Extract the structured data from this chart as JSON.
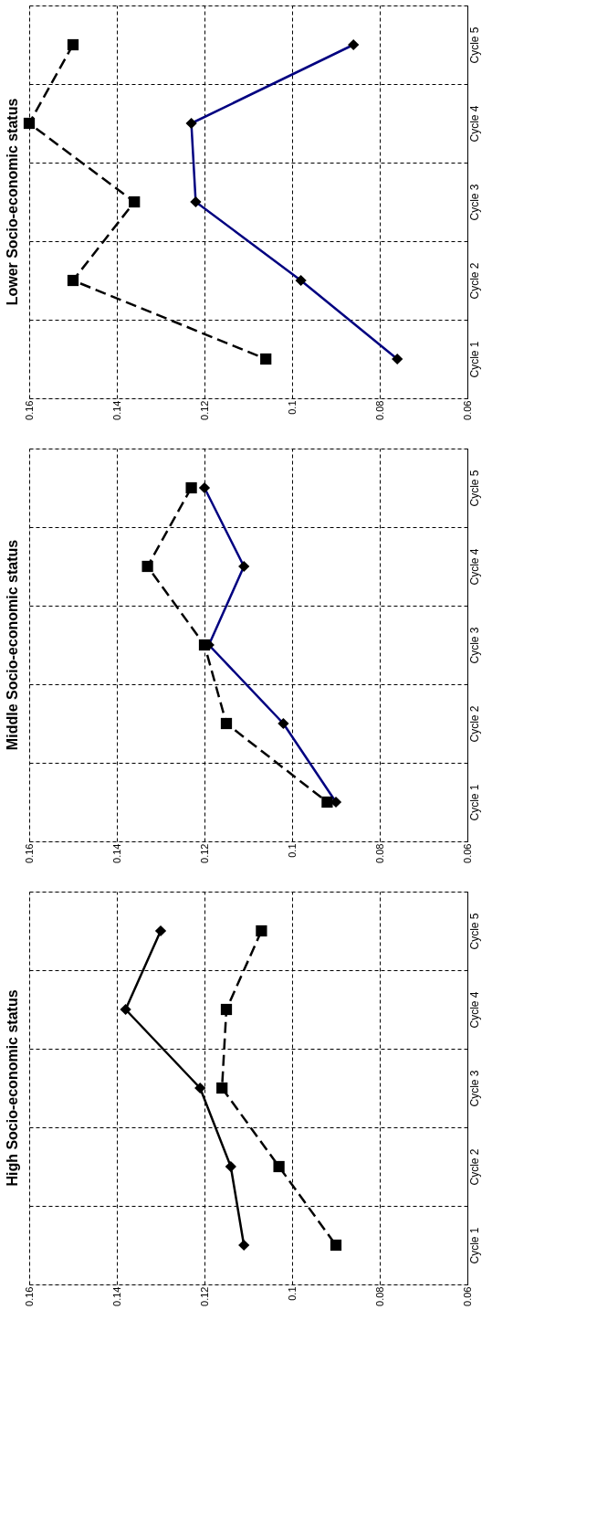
{
  "chart_data": [
    {
      "type": "line",
      "title": "Lower Socio-economic status",
      "orientation": "horizontal",
      "categories": [
        "Cycle 5",
        "Cycle 4",
        "Cycle 3",
        "Cycle 2",
        "Cycle 1"
      ],
      "xlim": [
        0.16,
        0.06
      ],
      "xticks": [
        0.16,
        0.14,
        0.12,
        0.1,
        0.08,
        0.06
      ],
      "grid": true,
      "series": [
        {
          "color": "#000080",
          "marker": "diamond",
          "line_style": "solid",
          "values": [
            0.086,
            0.123,
            0.122,
            0.098,
            0.076
          ]
        },
        {
          "color": "#000000",
          "marker": "square",
          "line_style": "dashed",
          "values": [
            0.15,
            0.16,
            0.136,
            0.15,
            0.106
          ]
        }
      ]
    },
    {
      "type": "line",
      "title": "Middle Socio-economic status",
      "orientation": "horizontal",
      "categories": [
        "Cycle 5",
        "Cycle 4",
        "Cycle 3",
        "Cycle 2",
        "Cycle 1"
      ],
      "xlim": [
        0.16,
        0.06
      ],
      "xticks": [
        0.16,
        0.14,
        0.12,
        0.1,
        0.08,
        0.06
      ],
      "grid": true,
      "series": [
        {
          "color": "#000080",
          "marker": "diamond",
          "line_style": "solid",
          "values": [
            0.12,
            0.111,
            0.119,
            0.102,
            0.09
          ]
        },
        {
          "color": "#000000",
          "marker": "square",
          "line_style": "dashed",
          "values": [
            0.123,
            0.133,
            0.12,
            0.115,
            0.092
          ]
        }
      ]
    },
    {
      "type": "line",
      "title": "High Socio-economic status",
      "orientation": "horizontal",
      "categories": [
        "Cycle 5",
        "Cycle 4",
        "Cycle 3",
        "Cycle 2",
        "Cycle 1"
      ],
      "xlim": [
        0.16,
        0.06
      ],
      "xticks": [
        0.16,
        0.14,
        0.12,
        0.1,
        0.08,
        0.06
      ],
      "grid": true,
      "series": [
        {
          "color": "#000000",
          "marker": "diamond",
          "line_style": "solid",
          "values": [
            0.13,
            0.138,
            0.121,
            0.114,
            0.111
          ]
        },
        {
          "color": "#000000",
          "marker": "square",
          "line_style": "dashed",
          "values": [
            0.107,
            0.115,
            0.116,
            0.103,
            0.09
          ]
        }
      ]
    }
  ]
}
